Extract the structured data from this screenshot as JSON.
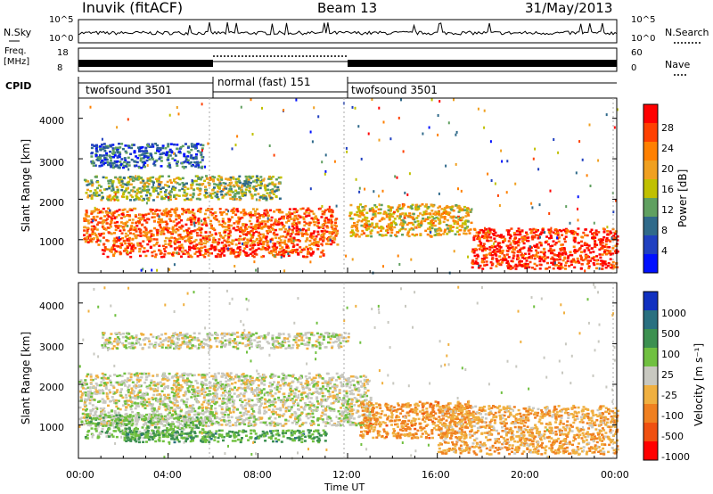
{
  "header": {
    "station": "Inuvik (fitACF)",
    "beam": "Beam 13",
    "date": "31/May/2013"
  },
  "top_panels": {
    "nsky_label": "N.Sky",
    "nsky_ticks": [
      "10^5",
      "10^0"
    ],
    "nsearch_label": "N.Search",
    "nsearch_ticks": [
      "10^5",
      "10^0"
    ],
    "freq_label_1": "Freq.",
    "freq_label_2": "[MHz]",
    "freq_ticks": [
      "18",
      "8"
    ],
    "nave_label": "Nave",
    "nave_ticks": [
      "60",
      "0"
    ],
    "cpid_label": "CPID",
    "cpid_segments": [
      {
        "label": "twofsound 3501",
        "start_h": 0,
        "end_h": 6
      },
      {
        "label": "normal (fast) 151",
        "start_h": 6,
        "end_h": 12
      },
      {
        "label": "twofsound 3501",
        "start_h": 12,
        "end_h": 24
      }
    ]
  },
  "axes": {
    "ylabel": "Slant Range [km]",
    "xlabel": "Time UT",
    "y_ticks": [
      "4000",
      "3000",
      "2000",
      "1000"
    ],
    "x_ticks": [
      "00:00",
      "04:00",
      "08:00",
      "12:00",
      "16:00",
      "20:00",
      "00:00"
    ]
  },
  "power_scale": {
    "label": "Power [dB]",
    "ticks": [
      "28",
      "24",
      "20",
      "16",
      "12",
      "8",
      "4"
    ],
    "colors": [
      "#ff0000",
      "#ff4000",
      "#ff8000",
      "#f0a020",
      "#c0c000",
      "#60a060",
      "#306a8a",
      "#2040c0",
      "#0010ff"
    ]
  },
  "velocity_scale": {
    "label": "Velocity [m s⁻¹]",
    "ticks": [
      "1000",
      "500",
      "100",
      "25",
      "-25",
      "-100",
      "-500",
      "-1000"
    ],
    "colors": [
      "#1030c0",
      "#2a7080",
      "#3c9050",
      "#70c040",
      "#c8c8c0",
      "#f0b040",
      "#f08020",
      "#f05010",
      "#ff0000"
    ]
  },
  "chart_data": {
    "type": "heatmap",
    "title": "Inuvik (fitACF) Beam 13 31/May/2013",
    "xlabel": "Time UT",
    "ylabel": "Slant Range [km]",
    "x_range_h": [
      0,
      24
    ],
    "y_range_km": [
      180,
      4500
    ],
    "panels": [
      {
        "name": "Power",
        "unit": "dB",
        "scale": [
          0,
          30
        ],
        "regions": [
          {
            "t0": 0.2,
            "t1": 11.5,
            "r0": 900,
            "r1": 1800,
            "level": 24
          },
          {
            "t0": 1.0,
            "t1": 11.0,
            "r0": 600,
            "r1": 900,
            "level": 27
          },
          {
            "t0": 12.0,
            "t1": 17.5,
            "r0": 1100,
            "r1": 1900,
            "level": 18
          },
          {
            "t0": 17.5,
            "t1": 24.0,
            "r0": 300,
            "r1": 1300,
            "level": 28
          },
          {
            "t0": 0.2,
            "t1": 9.0,
            "r0": 2000,
            "r1": 2600,
            "level": 14
          },
          {
            "t0": 0.5,
            "t1": 5.5,
            "r0": 2800,
            "r1": 3400,
            "level": 6
          }
        ]
      },
      {
        "name": "Velocity",
        "unit": "m s-1",
        "scale": [
          -1000,
          1000
        ],
        "regions": [
          {
            "t0": 0.0,
            "t1": 13.0,
            "r0": 1000,
            "r1": 2300,
            "level": 0
          },
          {
            "t0": 0.2,
            "t1": 6.0,
            "r0": 700,
            "r1": 1300,
            "level": 200
          },
          {
            "t0": 2.0,
            "t1": 11.0,
            "r0": 600,
            "r1": 900,
            "level": 400
          },
          {
            "t0": 12.5,
            "t1": 17.5,
            "r0": 700,
            "r1": 1600,
            "level": -400
          },
          {
            "t0": 16.0,
            "t1": 24.0,
            "r0": 300,
            "r1": 1500,
            "level": -300
          },
          {
            "t0": 1.0,
            "t1": 12.0,
            "r0": 2900,
            "r1": 3300,
            "level": 0
          }
        ]
      }
    ]
  }
}
